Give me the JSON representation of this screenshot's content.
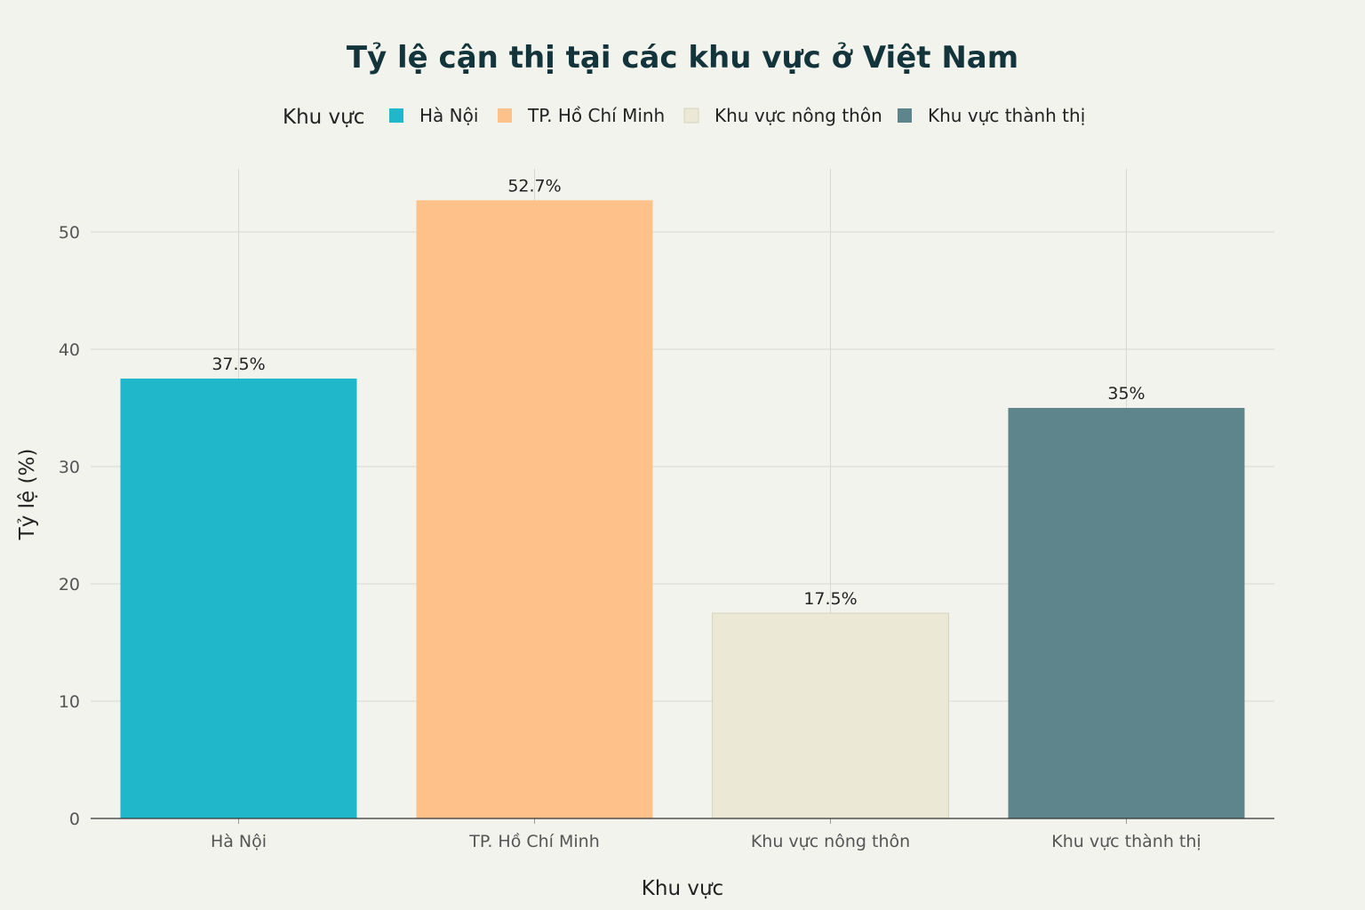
{
  "chart_data": {
    "type": "bar",
    "title": "Tỷ lệ cận thị tại các khu vực ở Việt Nam",
    "xlabel": "Khu vực",
    "ylabel": "Tỷ lệ (%)",
    "legend": {
      "title": "Khu vực",
      "position": "top-center"
    },
    "categories": [
      "Hà Nội",
      "TP. Hồ Chí Minh",
      "Khu vực nông thôn",
      "Khu vực thành thị"
    ],
    "values": [
      37.5,
      52.7,
      17.5,
      35
    ],
    "value_labels": [
      "37.5%",
      "52.7%",
      "17.5%",
      "35%"
    ],
    "colors": [
      "#20b7cb",
      "#fdc189",
      "#ebe9d5",
      "#5e858b"
    ],
    "ylim": [
      0,
      55
    ],
    "yticks": [
      0,
      10,
      20,
      30,
      40,
      50
    ],
    "grid": true
  }
}
